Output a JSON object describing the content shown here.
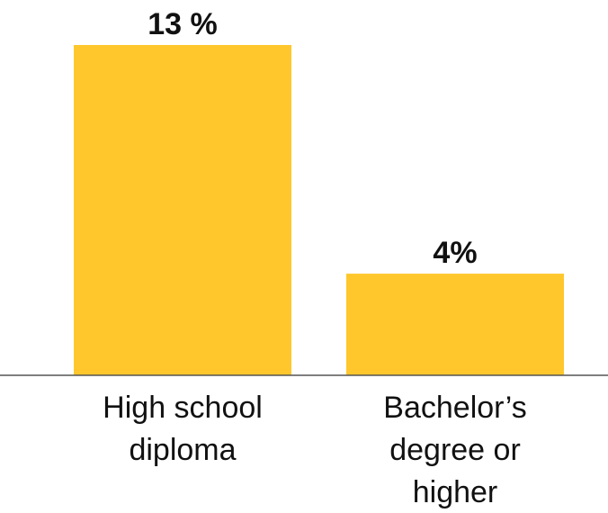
{
  "chart_data": {
    "type": "bar",
    "categories": [
      "High school diploma",
      "Bachelor’s degree or higher"
    ],
    "category_lines": [
      [
        "High school",
        "diploma"
      ],
      [
        "Bachelor’s",
        "degree or",
        "higher"
      ]
    ],
    "values": [
      13,
      4
    ],
    "data_labels": [
      "13 %",
      "4%"
    ],
    "title": "",
    "xlabel": "",
    "ylabel": "",
    "ylim": [
      0,
      13
    ],
    "grid": false,
    "legend": "none",
    "colors": {
      "bar": "#FFC72C",
      "baseline": "#555555",
      "text": "#111111"
    }
  }
}
